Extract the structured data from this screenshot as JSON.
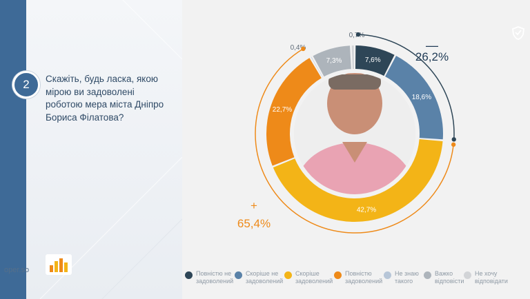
{
  "question": {
    "number": "2",
    "text": "Скажіть, будь ласка, якою мірою ви задоволені роботою мера міста Дніпро Бориса Філатова?"
  },
  "footer": {
    "site": "oper.so"
  },
  "summary": {
    "negative_sign": "—",
    "negative_value": "26,2%",
    "positive_sign": "+",
    "positive_value": "65,4%"
  },
  "chart_data": {
    "type": "pie",
    "variant": "donut",
    "categories": [
      "Повністю не задоволений",
      "Скоріше не задоволений",
      "Скоріше задоволений",
      "Повністю задоволений",
      "Не знаю такого",
      "Важко відповісти",
      "Не хочу відповідати"
    ],
    "values": [
      7.6,
      18.6,
      42.7,
      22.7,
      0.4,
      7.3,
      0.7
    ],
    "labels": [
      "7,6%",
      "18,6%",
      "42,7%",
      "22,7%",
      "0,4%",
      "7,3%",
      "0,7%"
    ],
    "colors": [
      "#2e4657",
      "#5a82a8",
      "#f3b417",
      "#ee8a19",
      "#b7c6d8",
      "#adb4bb",
      "#d2d4d7"
    ]
  },
  "legend": [
    {
      "label": "Повністю не\nзадоволений",
      "color": "#2e4657"
    },
    {
      "label": "Скоріше не\nзадоволений",
      "color": "#5a82a8"
    },
    {
      "label": "Скоріше\nзадоволений",
      "color": "#f3b417"
    },
    {
      "label": "Повністю\nзадоволений",
      "color": "#ee8a19"
    },
    {
      "label": "Не знаю\nтакого",
      "color": "#b7c6d8"
    },
    {
      "label": "Важко\nвідповісти",
      "color": "#adb4bb"
    },
    {
      "label": "Не хочу\nвідповідати",
      "color": "#d2d4d7"
    }
  ],
  "icons": {
    "logo": "bar-chart-logo-icon",
    "corner": "shield-icon",
    "photo": "portrait-photo"
  }
}
